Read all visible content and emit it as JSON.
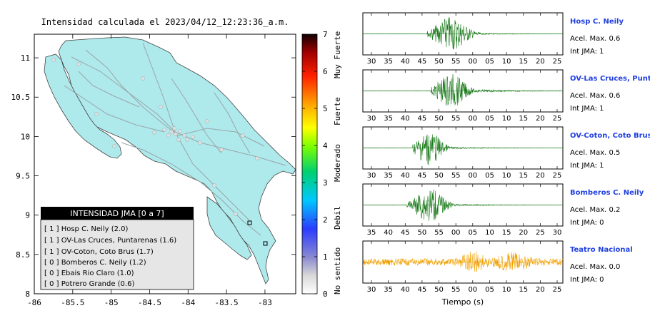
{
  "map": {
    "title": "Intensidad calculada el 2023/04/12_12:23:36_a.m.",
    "x_ticks": [
      "-86",
      "-85.5",
      "-85",
      "-84.5",
      "-84",
      "-83.5",
      "-83"
    ],
    "y_ticks": [
      "11",
      "10.5",
      "10",
      "9.5",
      "9",
      "8.5",
      "8"
    ],
    "land_color": "#aee9ec",
    "water_color": "#ffffff"
  },
  "legend": {
    "title": "INTENSIDAD JMA [0 a 7]",
    "items": [
      {
        "label": "[ 1 ]  Hosp C. Neily (2.0)"
      },
      {
        "label": "[ 1 ]  OV-Las Cruces, Puntarenas (1.6)"
      },
      {
        "label": "[ 1 ]  OV-Coton, Coto Brus (1.7)"
      },
      {
        "label": "[ 0 ]  Bomberos C. Neily (1.2)"
      },
      {
        "label": "[ 0 ]  Ebais Rio Claro (1.0)"
      },
      {
        "label": "[ 0 ]  Potrero Grande (0.6)"
      }
    ]
  },
  "colorbar": {
    "ticks": [
      "0",
      "1",
      "2",
      "3",
      "4",
      "5",
      "6",
      "7"
    ],
    "labels": [
      "No sentido",
      "Debil",
      "Moderado",
      "Fuerte",
      "Muy Fuerte"
    ]
  },
  "traces": {
    "xlabel": "Tiempo (s)",
    "panels": [
      {
        "station": "Hosp C. Neily",
        "accel": "Acel. Max. 0.6",
        "jma": "Int JMA: 1",
        "ticks": [
          "30",
          "35",
          "40",
          "45",
          "50",
          "55",
          "00",
          "05",
          "10",
          "15",
          "20",
          "25"
        ],
        "color": "#1a7a1a"
      },
      {
        "station": "OV-Las Cruces, Puntar",
        "accel": "Acel. Max. 0.6",
        "jma": "Int JMA: 1",
        "ticks": [
          "30",
          "35",
          "40",
          "45",
          "50",
          "55",
          "00",
          "05",
          "10",
          "15",
          "20",
          "25"
        ],
        "color": "#1a7a1a"
      },
      {
        "station": "OV-Coton, Coto Brus",
        "accel": "Acel. Max. 0.5",
        "jma": "Int JMA: 1",
        "ticks": [
          "30",
          "35",
          "40",
          "45",
          "50",
          "55",
          "00",
          "05",
          "10",
          "15",
          "20",
          "25"
        ],
        "color": "#1a7a1a"
      },
      {
        "station": "Bomberos C. Neily",
        "accel": "Acel. Max. 0.2",
        "jma": "Int JMA: 0",
        "ticks": [
          "35",
          "40",
          "45",
          "50",
          "55",
          "00",
          "05",
          "10",
          "15",
          "20",
          "25",
          "30"
        ],
        "color": "#1a7a1a"
      },
      {
        "station": "Teatro Nacional",
        "accel": "Acel. Max. 0.0",
        "jma": "Int JMA: 0",
        "ticks": [
          "30",
          "35",
          "40",
          "45",
          "50",
          "55",
          "00",
          "05",
          "10",
          "15",
          "20",
          "25"
        ],
        "color": "#f0a000"
      }
    ]
  },
  "chart_data": [
    {
      "type": "scatter",
      "title": "Intensidad calculada el 2023/04/12_12:23:36_a.m.",
      "xlim": [
        -86,
        -82.6
      ],
      "ylim": [
        8,
        11.3
      ],
      "stations": [
        {
          "name": "Hosp C. Neily",
          "jma": 1,
          "value": 2.0
        },
        {
          "name": "OV-Las Cruces, Puntarenas",
          "jma": 1,
          "value": 1.6
        },
        {
          "name": "OV-Coton, Coto Brus",
          "jma": 1,
          "value": 1.7
        },
        {
          "name": "Bomberos C. Neily",
          "jma": 0,
          "value": 1.2
        },
        {
          "name": "Ebais Rio Claro",
          "jma": 0,
          "value": 1.0
        },
        {
          "name": "Potrero Grande",
          "jma": 0,
          "value": 0.6
        }
      ],
      "colorbar_range": [
        0,
        7
      ]
    },
    {
      "type": "line",
      "xlabel": "Tiempo (s)",
      "series": [
        {
          "name": "Hosp C. Neily",
          "peak_accel": 0.6,
          "jma": 1
        },
        {
          "name": "OV-Las Cruces, Puntar",
          "peak_accel": 0.6,
          "jma": 1
        },
        {
          "name": "OV-Coton, Coto Brus",
          "peak_accel": 0.5,
          "jma": 1
        },
        {
          "name": "Bomberos C. Neily",
          "peak_accel": 0.2,
          "jma": 0
        },
        {
          "name": "Teatro Nacional",
          "peak_accel": 0.0,
          "jma": 0
        }
      ]
    }
  ]
}
